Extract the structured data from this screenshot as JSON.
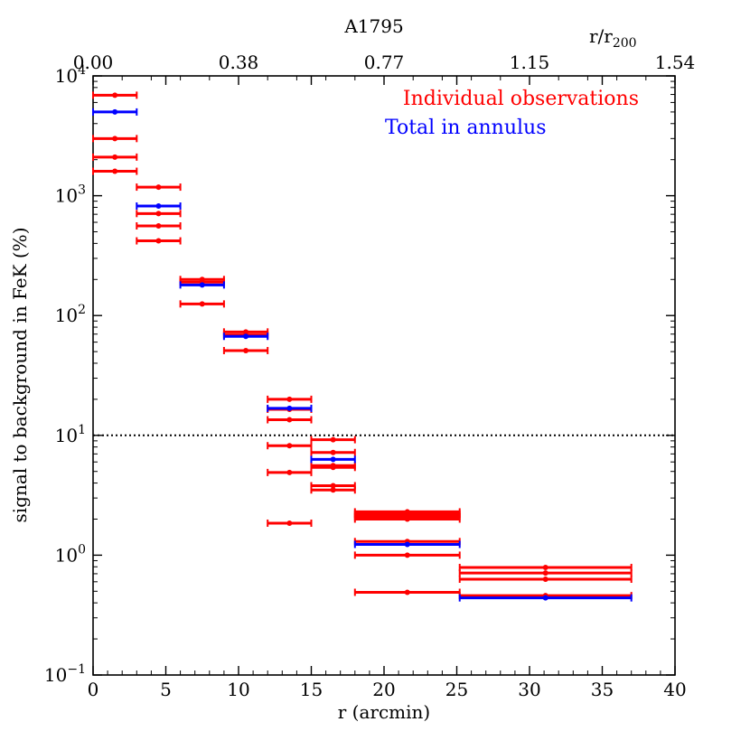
{
  "chart_data": {
    "type": "scatter",
    "title": "A1795",
    "xlabel": "r (arcmin)",
    "ylabel": "signal to background in FeK (%)",
    "top_axis": {
      "label": "r/r",
      "label_sub": "200",
      "ticks": [
        {
          "x": 0,
          "label": "0.00"
        },
        {
          "x": 10,
          "label": "0.38"
        },
        {
          "x": 20,
          "label": "0.77"
        },
        {
          "x": 30,
          "label": "1.15"
        },
        {
          "x": 40,
          "label": "1.54"
        }
      ]
    },
    "xlim": [
      0,
      40
    ],
    "ylim": [
      0.1,
      10000
    ],
    "yscale": "log",
    "x_ticks": [
      {
        "x": 0,
        "label": "0"
      },
      {
        "x": 5,
        "label": "5"
      },
      {
        "x": 10,
        "label": "10"
      },
      {
        "x": 15,
        "label": "15"
      },
      {
        "x": 20,
        "label": "20"
      },
      {
        "x": 25,
        "label": "25"
      },
      {
        "x": 30,
        "label": "30"
      },
      {
        "x": 35,
        "label": "35"
      },
      {
        "x": 40,
        "label": "40"
      }
    ],
    "y_ticks": [
      {
        "y": 0.1,
        "base": "10",
        "exp": "−1"
      },
      {
        "y": 1,
        "base": "10",
        "exp": "0"
      },
      {
        "y": 10,
        "base": "10",
        "exp": "1"
      },
      {
        "y": 100,
        "base": "10",
        "exp": "2"
      },
      {
        "y": 1000,
        "base": "10",
        "exp": "3"
      },
      {
        "y": 10000,
        "base": "10",
        "exp": "4"
      }
    ],
    "reference_line": {
      "y": 10,
      "style": "dotted"
    },
    "legend_position": "top-right",
    "series": [
      {
        "name": "Individual observations",
        "color": "#ff0000",
        "points": [
          {
            "x": 1.5,
            "xmin": 0,
            "xmax": 3,
            "y": 6900
          },
          {
            "x": 1.5,
            "xmin": 0,
            "xmax": 3,
            "y": 3000
          },
          {
            "x": 1.5,
            "xmin": 0,
            "xmax": 3,
            "y": 2100
          },
          {
            "x": 1.5,
            "xmin": 0,
            "xmax": 3,
            "y": 1600
          },
          {
            "x": 4.5,
            "xmin": 3,
            "xmax": 6,
            "y": 1180
          },
          {
            "x": 4.5,
            "xmin": 3,
            "xmax": 6,
            "y": 710
          },
          {
            "x": 4.5,
            "xmin": 3,
            "xmax": 6,
            "y": 560
          },
          {
            "x": 4.5,
            "xmin": 3,
            "xmax": 6,
            "y": 420
          },
          {
            "x": 7.5,
            "xmin": 6,
            "xmax": 9,
            "y": 200
          },
          {
            "x": 7.5,
            "xmin": 6,
            "xmax": 9,
            "y": 190
          },
          {
            "x": 7.5,
            "xmin": 6,
            "xmax": 9,
            "y": 125
          },
          {
            "x": 10.5,
            "xmin": 9,
            "xmax": 12,
            "y": 73
          },
          {
            "x": 10.5,
            "xmin": 9,
            "xmax": 12,
            "y": 69
          },
          {
            "x": 10.5,
            "xmin": 9,
            "xmax": 12,
            "y": 51
          },
          {
            "x": 13.5,
            "xmin": 12,
            "xmax": 15,
            "y": 20
          },
          {
            "x": 13.5,
            "xmin": 12,
            "xmax": 15,
            "y": 16.5
          },
          {
            "x": 13.5,
            "xmin": 12,
            "xmax": 15,
            "y": 13.5
          },
          {
            "x": 13.5,
            "xmin": 12,
            "xmax": 15,
            "y": 8.2
          },
          {
            "x": 13.5,
            "xmin": 12,
            "xmax": 15,
            "y": 4.9
          },
          {
            "x": 13.5,
            "xmin": 12,
            "xmax": 15,
            "y": 1.85
          },
          {
            "x": 16.5,
            "xmin": 15,
            "xmax": 18,
            "y": 9.2
          },
          {
            "x": 16.5,
            "xmin": 15,
            "xmax": 18,
            "y": 7.2
          },
          {
            "x": 16.5,
            "xmin": 15,
            "xmax": 18,
            "y": 5.6
          },
          {
            "x": 16.5,
            "xmin": 15,
            "xmax": 18,
            "y": 5.4
          },
          {
            "x": 16.5,
            "xmin": 15,
            "xmax": 18,
            "y": 3.8
          },
          {
            "x": 16.5,
            "xmin": 15,
            "xmax": 18,
            "y": 3.5
          },
          {
            "x": 21.6,
            "xmin": 18,
            "xmax": 25.2,
            "y": 2.3
          },
          {
            "x": 21.6,
            "xmin": 18,
            "xmax": 25.2,
            "y": 2.2
          },
          {
            "x": 21.6,
            "xmin": 18,
            "xmax": 25.2,
            "y": 2.1
          },
          {
            "x": 21.6,
            "xmin": 18,
            "xmax": 25.2,
            "y": 2.0
          },
          {
            "x": 21.6,
            "xmin": 18,
            "xmax": 25.2,
            "y": 1.3
          },
          {
            "x": 21.6,
            "xmin": 18,
            "xmax": 25.2,
            "y": 1.0
          },
          {
            "x": 21.6,
            "xmin": 18,
            "xmax": 25.2,
            "y": 0.49
          },
          {
            "x": 31.1,
            "xmin": 25.2,
            "xmax": 37,
            "y": 0.79
          },
          {
            "x": 31.1,
            "xmin": 25.2,
            "xmax": 37,
            "y": 0.71
          },
          {
            "x": 31.1,
            "xmin": 25.2,
            "xmax": 37,
            "y": 0.63
          },
          {
            "x": 31.1,
            "xmin": 25.2,
            "xmax": 37,
            "y": 0.46
          }
        ]
      },
      {
        "name": "Total in annulus",
        "color": "#0000ff",
        "points": [
          {
            "x": 1.5,
            "xmin": 0,
            "xmax": 3,
            "y": 5000
          },
          {
            "x": 4.5,
            "xmin": 3,
            "xmax": 6,
            "y": 820
          },
          {
            "x": 7.5,
            "xmin": 6,
            "xmax": 9,
            "y": 180
          },
          {
            "x": 10.5,
            "xmin": 9,
            "xmax": 12,
            "y": 67
          },
          {
            "x": 13.5,
            "xmin": 12,
            "xmax": 15,
            "y": 16.8
          },
          {
            "x": 16.5,
            "xmin": 15,
            "xmax": 18,
            "y": 6.3
          },
          {
            "x": 21.6,
            "xmin": 18,
            "xmax": 25.2,
            "y": 1.23
          },
          {
            "x": 31.1,
            "xmin": 25.2,
            "xmax": 37,
            "y": 0.44
          }
        ]
      }
    ]
  }
}
